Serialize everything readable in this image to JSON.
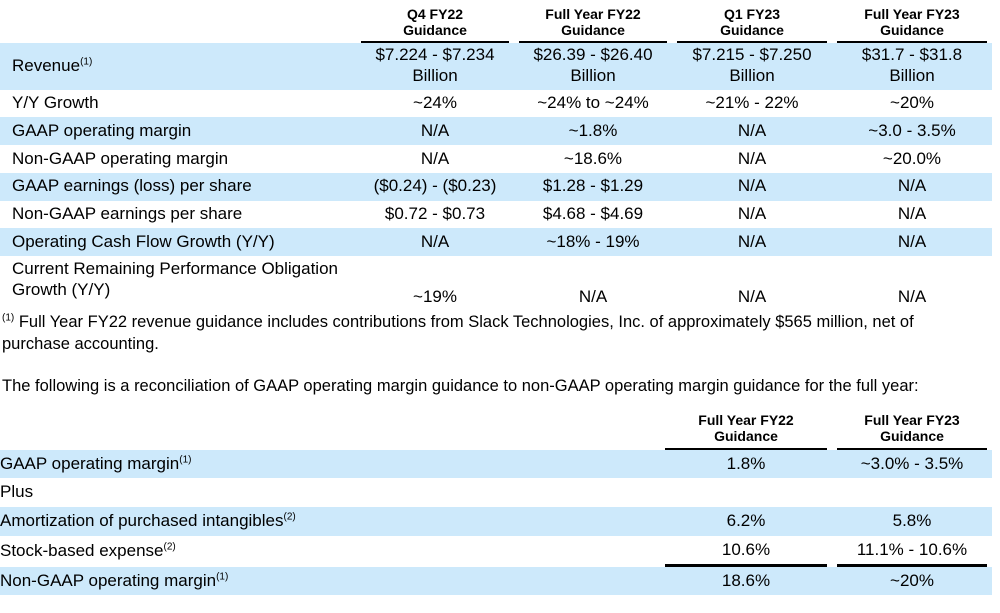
{
  "colors": {
    "row_highlight": "#cde9fb",
    "text": "#000000",
    "rule": "#000000"
  },
  "guidance_table": {
    "columns": [
      {
        "label": "Q4 FY22\nGuidance"
      },
      {
        "label": "Full Year FY22\nGuidance"
      },
      {
        "label": "Q1 FY23\nGuidance"
      },
      {
        "label": "Full Year FY23\nGuidance"
      }
    ],
    "rows": [
      {
        "label": "Revenue",
        "sup": "(1)",
        "values": [
          "$7.224 - $7.234\nBillion",
          "$26.39 - $26.40\nBillion",
          "$7.215 - $7.250\nBillion",
          "$31.7 - $31.8\nBillion"
        ]
      },
      {
        "label": "Y/Y Growth",
        "sup": "",
        "values": [
          "~24%",
          "~24% to ~24%",
          "~21% - 22%",
          "~20%"
        ]
      },
      {
        "label": "GAAP operating margin",
        "sup": "",
        "values": [
          "N/A",
          "~1.8%",
          "N/A",
          "~3.0 - 3.5%"
        ]
      },
      {
        "label": "Non-GAAP operating margin",
        "sup": "",
        "values": [
          "N/A",
          "~18.6%",
          "N/A",
          "~20.0%"
        ]
      },
      {
        "label": "GAAP earnings (loss) per share",
        "sup": "",
        "values": [
          "($0.24) - ($0.23)",
          "$1.28 - $1.29",
          "N/A",
          "N/A"
        ]
      },
      {
        "label": "Non-GAAP earnings per share",
        "sup": "",
        "values": [
          "$0.72 - $0.73",
          "$4.68 - $4.69",
          "N/A",
          "N/A"
        ]
      },
      {
        "label": "Operating Cash Flow Growth (Y/Y)",
        "sup": "",
        "values": [
          "N/A",
          "~18% - 19%",
          "N/A",
          "N/A"
        ]
      },
      {
        "label": "Current Remaining Performance Obligation Growth (Y/Y)",
        "sup": "",
        "values": [
          "~19%",
          "N/A",
          "N/A",
          "N/A"
        ]
      }
    ]
  },
  "footnote": {
    "marker": "(1)",
    "text": " Full Year FY22 revenue guidance includes contributions from Slack Technologies, Inc. of approximately $565 million, net of purchase accounting."
  },
  "intro_paragraph": "The following is a reconciliation of GAAP operating margin guidance to non-GAAP operating margin guidance for the full year:",
  "reconciliation_table": {
    "columns": [
      {
        "label": "Full Year FY22\nGuidance"
      },
      {
        "label": "Full Year FY23\nGuidance"
      }
    ],
    "rows": [
      {
        "label": "GAAP operating margin",
        "sup": "(1)",
        "values": [
          "1.8%",
          "~3.0% - 3.5%"
        ]
      },
      {
        "label": "Plus",
        "sup": "",
        "values": [
          "",
          ""
        ]
      },
      {
        "label": "Amortization of purchased intangibles",
        "sup": "(2)",
        "values": [
          "6.2%",
          "5.8%"
        ]
      },
      {
        "label": "Stock-based expense",
        "sup": "(2)",
        "values": [
          "10.6%",
          "11.1% - 10.6%"
        ]
      },
      {
        "label": "Non-GAAP operating margin",
        "sup": "(1)",
        "values": [
          "18.6%",
          "~20%"
        ]
      }
    ]
  }
}
